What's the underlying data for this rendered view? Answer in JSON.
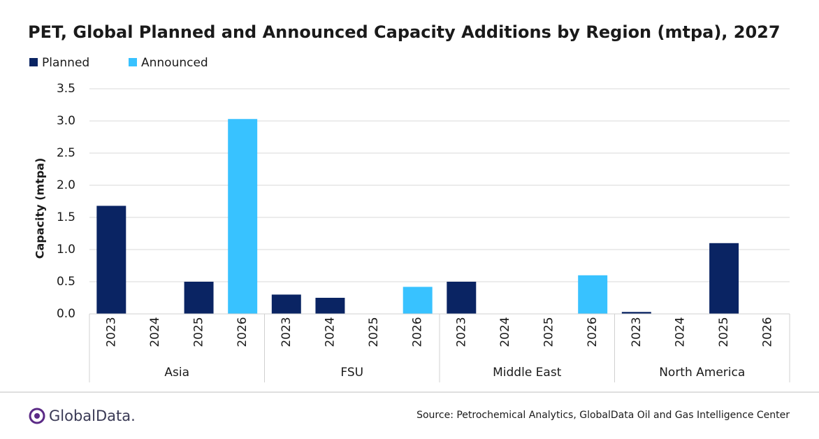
{
  "chart_data": {
    "type": "bar",
    "title": "PET, Global Planned and Announced Capacity Additions by Region (mtpa), 2027",
    "y_label": "Capacity (mtpa)",
    "groups": [
      {
        "name": "Asia",
        "categories": [
          "2023",
          "2024",
          "2025",
          "2026"
        ]
      },
      {
        "name": "FSU",
        "categories": [
          "2023",
          "2024",
          "2025",
          "2026"
        ]
      },
      {
        "name": "Middle East",
        "categories": [
          "2023",
          "2024",
          "2025",
          "2026"
        ]
      },
      {
        "name": "North America",
        "categories": [
          "2023",
          "2024",
          "2025",
          "2026"
        ]
      }
    ],
    "series": [
      {
        "name": "Planned",
        "color": "#0a2463",
        "values": [
          1.68,
          0,
          0.5,
          null,
          0.3,
          0.25,
          0,
          null,
          0.5,
          0,
          0,
          null,
          0.03,
          0,
          1.1,
          0
        ]
      },
      {
        "name": "Announced",
        "color": "#38c2ff",
        "values": [
          null,
          null,
          null,
          3.03,
          null,
          null,
          null,
          0.42,
          null,
          null,
          null,
          0.6,
          null,
          null,
          null,
          null
        ]
      }
    ],
    "ylim": [
      0,
      3.5
    ],
    "yticks": [
      {
        "value": 0,
        "label": "0.0"
      },
      0.5,
      {
        "value": 1,
        "label": "1.0"
      },
      1.5,
      {
        "value": 2,
        "label": "2.0"
      },
      2.5,
      {
        "value": 3,
        "label": "3.0"
      },
      3.5
    ],
    "grid": true,
    "legend": "top-left",
    "source": "Source:  Petrochemical Analytics, GlobalData Oil and Gas Intelligence Center",
    "brand": "GlobalData."
  }
}
